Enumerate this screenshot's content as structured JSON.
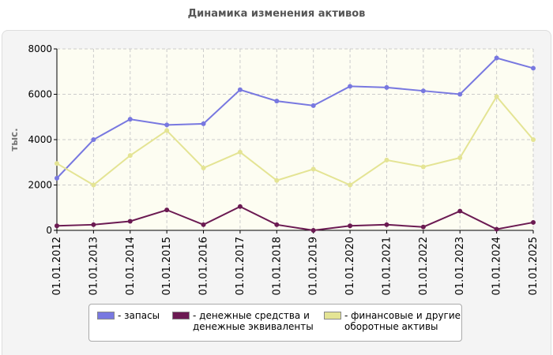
{
  "chart_data": {
    "type": "line",
    "title": "Динамика изменения активов",
    "y_label": "тыс.",
    "categories": [
      "01.01.2012",
      "01.01.2013",
      "01.01.2014",
      "01.01.2015",
      "01.01.2016",
      "01.01.2017",
      "01.01.2018",
      "01.01.2019",
      "01.01.2020",
      "01.01.2021",
      "01.01.2022",
      "01.01.2023",
      "01.01.2024",
      "01.01.2025"
    ],
    "series": [
      {
        "name": "- запасы",
        "color": "#7878e0",
        "values": [
          2300,
          4000,
          4900,
          4650,
          4700,
          6200,
          5700,
          5500,
          6350,
          6300,
          6150,
          6000,
          7600,
          7150
        ]
      },
      {
        "name": "- денежные средства и денежные эквиваленты",
        "color": "#6b1a52",
        "values": [
          200,
          250,
          400,
          900,
          250,
          1050,
          250,
          0,
          200,
          250,
          150,
          850,
          50,
          350
        ]
      },
      {
        "name": "- финансовые и другие оборотные активы",
        "color": "#e4e494",
        "values": [
          2950,
          2000,
          3300,
          4400,
          2750,
          3450,
          2200,
          2700,
          2000,
          3100,
          2800,
          3200,
          5900,
          4000
        ]
      }
    ],
    "ylim": [
      0,
      8000
    ],
    "yticks": [
      0,
      2000,
      4000,
      6000,
      8000
    ],
    "grid": true
  }
}
